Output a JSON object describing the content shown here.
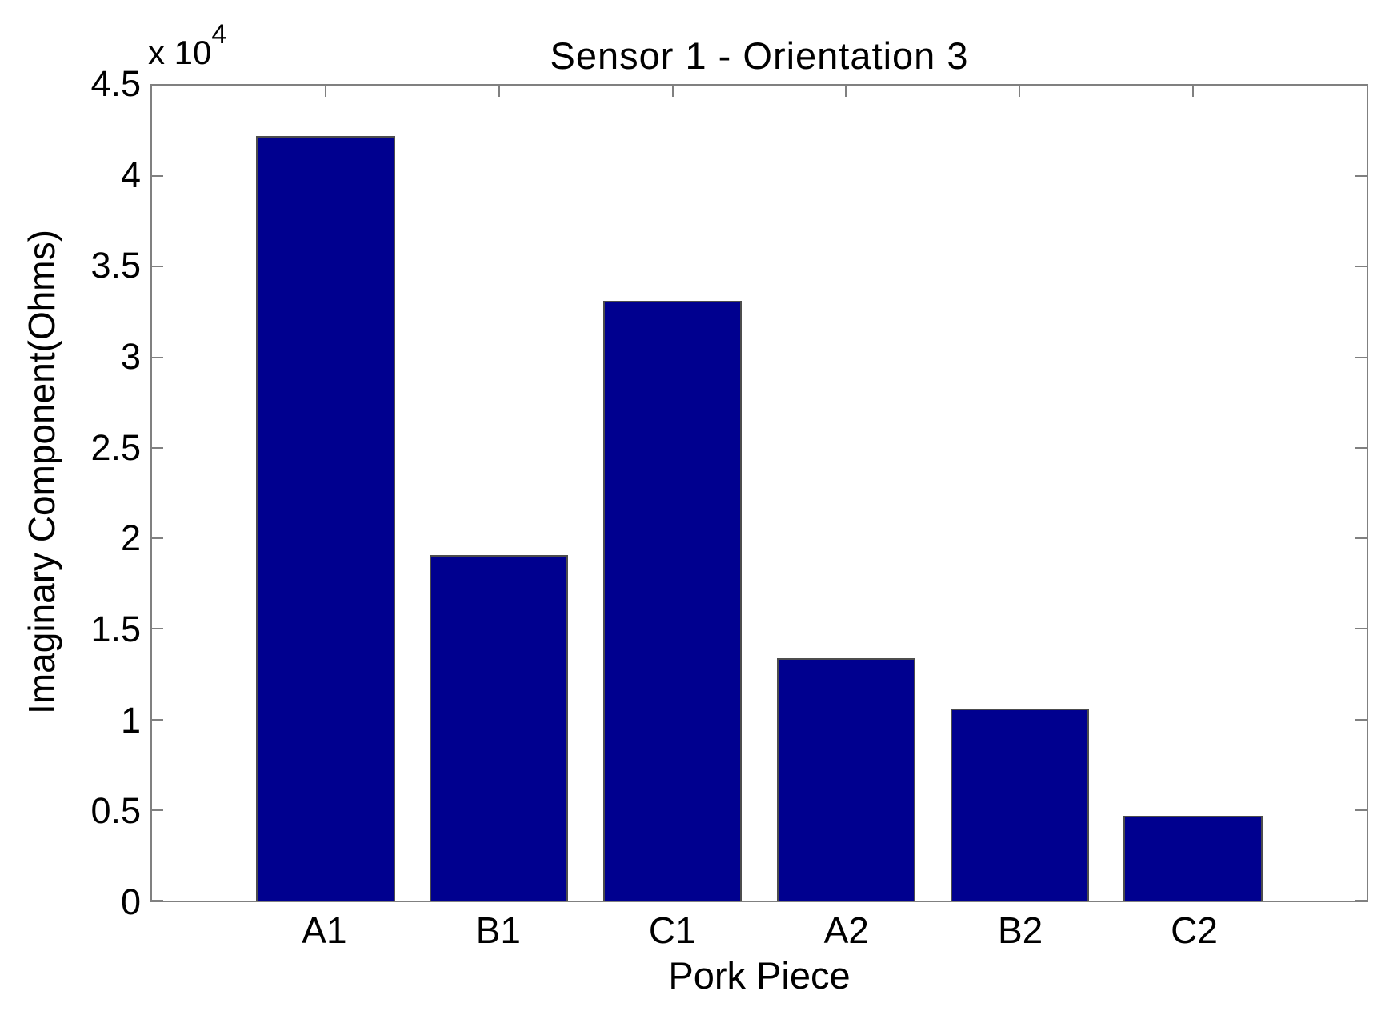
{
  "chart_data": {
    "type": "bar",
    "title": "Sensor 1 - Orientation 3",
    "xlabel": "Pork Piece",
    "ylabel": "Imaginary Component(Ohms)",
    "y_scale_label": {
      "base": "x 10",
      "exponent": "4"
    },
    "categories": [
      "A1",
      "B1",
      "C1",
      "A2",
      "B2",
      "C2"
    ],
    "values_ohms": [
      42200,
      19100,
      33100,
      13400,
      10600,
      4700
    ],
    "values_e4": [
      4.22,
      1.91,
      3.31,
      1.34,
      1.06,
      0.47
    ],
    "ylim": [
      0,
      45000
    ],
    "ytick_values": [
      0,
      5000,
      10000,
      15000,
      20000,
      25000,
      30000,
      35000,
      40000,
      45000
    ],
    "ytick_labels": [
      "0",
      "0.5",
      "1",
      "1.5",
      "2",
      "2.5",
      "3",
      "3.5",
      "4",
      "4.5"
    ],
    "bar_width_fraction": 0.8,
    "grid": false,
    "legend": "none",
    "colors": {
      "bar_fill": "#00008F",
      "bar_edge": "#4d4d4d",
      "axis": "#808080",
      "text": "#000000"
    }
  }
}
